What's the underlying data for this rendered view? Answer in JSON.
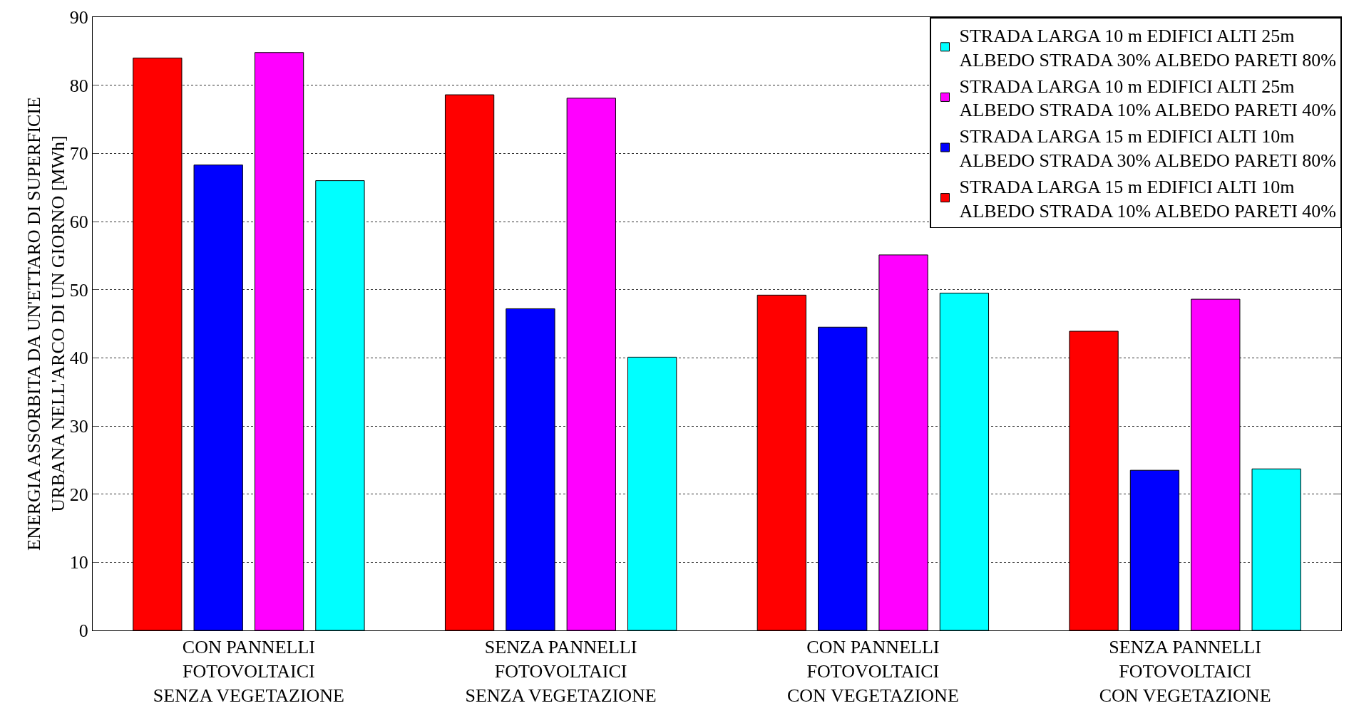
{
  "chart_data": {
    "type": "bar",
    "ylabel": "ENERGIA ASSORBITA DA UN'ETTARO DI SUPERFICIE\nURBANA NELL'ARCO DI UN GIORNO [MWh]",
    "categories": [
      "CON PANNELLI\nFOTOVOLTAICI\nSENZA VEGETAZIONE",
      "SENZA PANNELLI\nFOTOVOLTAICI\nSENZA VEGETAZIONE",
      "CON PANNELLI\nFOTOVOLTAICI\nCON VEGETAZIONE",
      "SENZA PANNELLI\nFOTOVOLTAICI\nCON VEGETAZIONE"
    ],
    "series": [
      {
        "name": "STRADA LARGA 15 m EDIFICI ALTI 10m\nALBEDO STRADA 10% ALBEDO PARETI 40%",
        "color": "#ff0000",
        "values": [
          84,
          78.6,
          49.2,
          43.9
        ]
      },
      {
        "name": "STRADA LARGA 15 m EDIFICI ALTI 10m\nALBEDO STRADA 30% ALBEDO PARETI 80%",
        "color": "#0000ff",
        "values": [
          68.3,
          47.2,
          44.5,
          23.5
        ]
      },
      {
        "name": "STRADA LARGA 10 m EDIFICI ALTI 25m\nALBEDO STRADA 10% ALBEDO PARETI 40%",
        "color": "#ff00ff",
        "values": [
          84.8,
          78.1,
          55.1,
          48.6
        ]
      },
      {
        "name": "STRADA LARGA 10 m EDIFICI ALTI 25m\nALBEDO STRADA 30% ALBEDO PARETI 80%",
        "color": "#00ffff",
        "values": [
          66,
          40.1,
          49.5,
          23.7
        ]
      }
    ],
    "ylim": [
      0,
      90
    ],
    "yticks": [
      0,
      10,
      20,
      30,
      40,
      50,
      60,
      70,
      80,
      90
    ],
    "grid": "y",
    "legend": "top right"
  }
}
